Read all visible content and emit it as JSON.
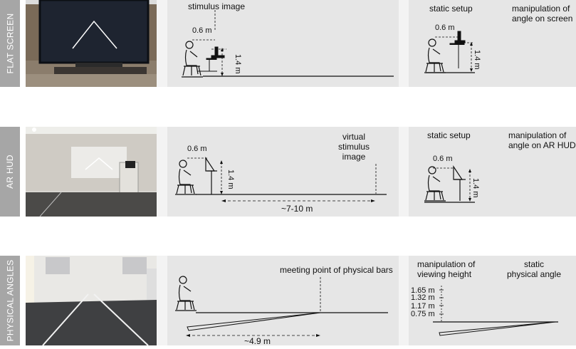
{
  "rows": [
    {
      "label": "FLAT SCREEN"
    },
    {
      "label": "AR HUD"
    },
    {
      "label": "PHYSICAL ANGLES"
    }
  ],
  "flat": {
    "middle": {
      "stimulus": "stimulus image",
      "dist": "0.6 m",
      "height": "1.4 m"
    },
    "right": {
      "static": "static setup",
      "manip_line1": "manipulation of",
      "manip_line2": "angle on screen",
      "dist": "0.6 m",
      "height": "1.4 m"
    }
  },
  "ar": {
    "middle": {
      "dist": "0.6 m",
      "height": "1.4 m",
      "virtual_line1": "virtual",
      "virtual_line2": "stimulus",
      "virtual_line3": "image",
      "range": "~7-10 m"
    },
    "right": {
      "static": "static setup",
      "manip_line1": "manipulation of",
      "manip_line2": "angle on AR HUD",
      "dist": "0.6 m",
      "height": "1.4 m"
    }
  },
  "phys": {
    "middle": {
      "meeting": "meeting point of physical bars",
      "range": "~4.9 m"
    },
    "right": {
      "manip_line1": "manipulation of",
      "manip_line2": "viewing height",
      "static_line1": "static",
      "static_line2": "physical angle",
      "h1": "1.65 m",
      "h2": "1.32 m",
      "h3": "1.17 m",
      "h4": "0.75 m"
    }
  }
}
